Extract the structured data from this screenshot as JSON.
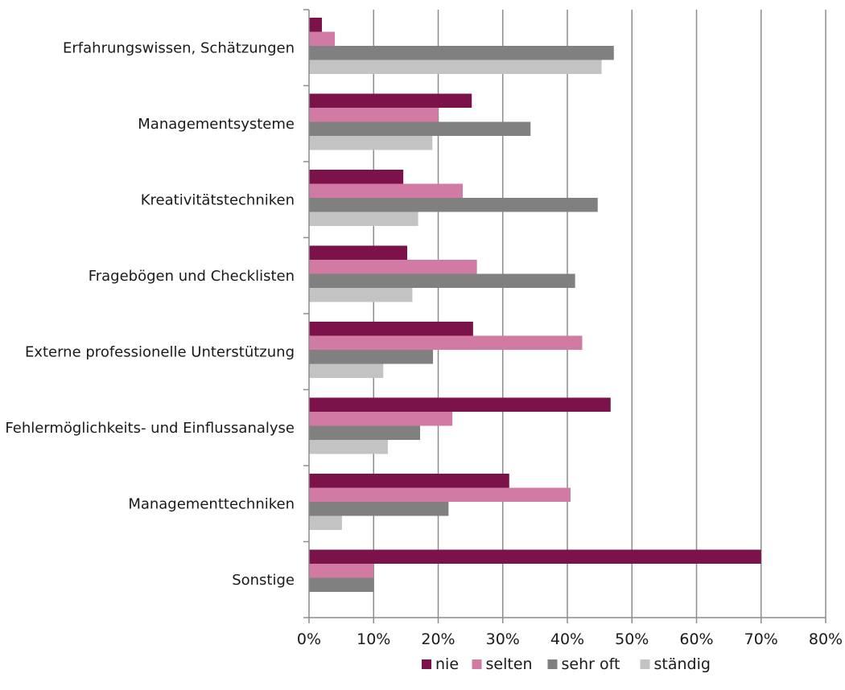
{
  "chart_data": {
    "type": "bar",
    "orientation": "horizontal",
    "categories": [
      "Erfahrungswissen, Schätzungen",
      "Managementsysteme",
      "Kreativitätstechniken",
      "Fragebögen und Checklisten",
      "Externe professionelle Unterstützung",
      "Fehlermöglichkeits- und Einflussanalyse",
      "Managementtechniken",
      "Sonstige"
    ],
    "series": [
      {
        "name": "nie",
        "color": "#7b1249",
        "values": [
          2,
          25.2,
          14.6,
          15.2,
          25.4,
          46.7,
          31,
          70
        ]
      },
      {
        "name": "selten",
        "color": "#d17aa3",
        "values": [
          4,
          20,
          23.8,
          26,
          42.3,
          22.2,
          40.5,
          10
        ]
      },
      {
        "name": "sehr oft",
        "color": "#808080",
        "values": [
          47.2,
          34.3,
          44.7,
          41.2,
          19.2,
          17.2,
          21.6,
          10
        ]
      },
      {
        "name": "ständig",
        "color": "#c3c3c3",
        "values": [
          45.3,
          19.1,
          16.9,
          16,
          11.5,
          12.2,
          5.1,
          0
        ]
      }
    ],
    "xlim": [
      0,
      80
    ],
    "xticks": [
      "0%",
      "10%",
      "20%",
      "30%",
      "40%",
      "50%",
      "60%",
      "70%",
      "80%"
    ],
    "gridlines": "vertical",
    "legend_position": "bottom-center",
    "title": "",
    "xlabel": "",
    "ylabel": ""
  }
}
